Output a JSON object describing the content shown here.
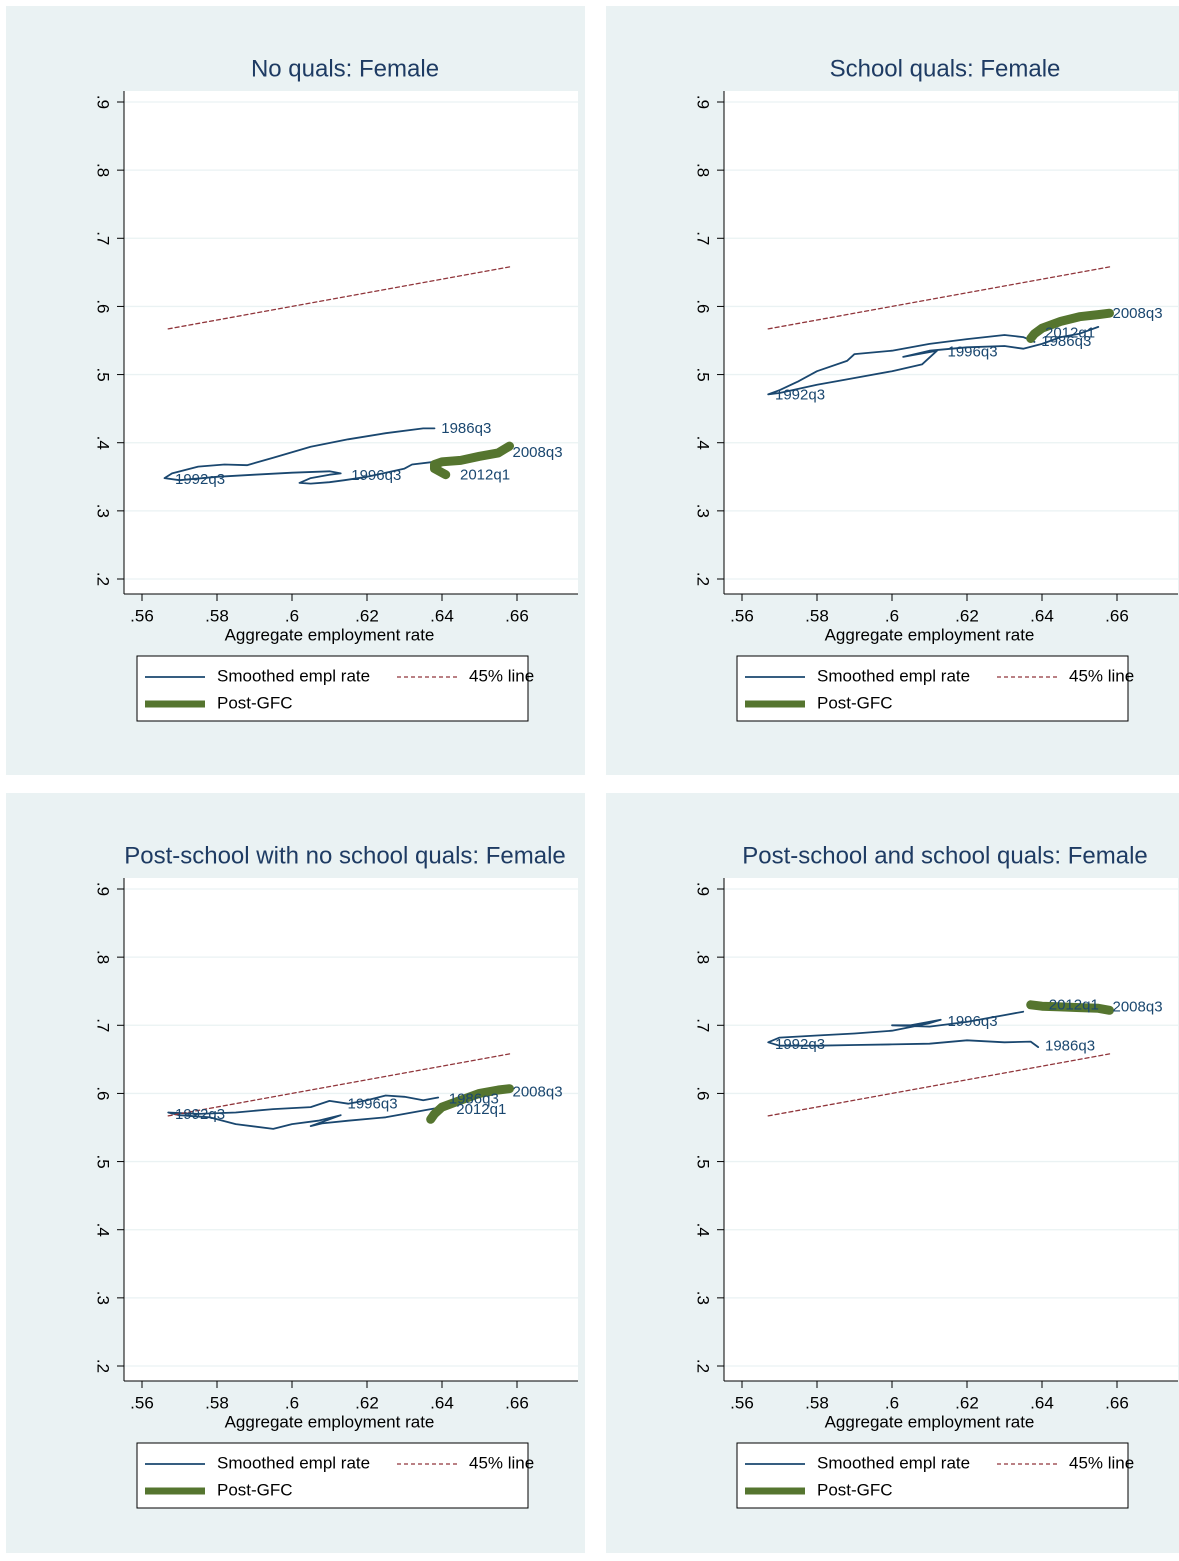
{
  "chart_data": [
    {
      "type": "line",
      "title": "No quals: Female",
      "xlabel": "Aggregate employment rate",
      "xlim": [
        0.56,
        0.66
      ],
      "xticks": [
        {
          "value": 0.56,
          "label": ".56"
        },
        {
          "value": 0.58,
          "label": ".58"
        },
        {
          "value": 0.6,
          "label": ".6"
        },
        {
          "value": 0.62,
          "label": ".62"
        },
        {
          "value": 0.64,
          "label": ".64"
        },
        {
          "value": 0.66,
          "label": ".66"
        }
      ],
      "ylim": [
        0.2,
        0.9
      ],
      "yticks": [
        {
          "value": 0.2,
          "label": ".2"
        },
        {
          "value": 0.3,
          "label": ".3"
        },
        {
          "value": 0.4,
          "label": ".4"
        },
        {
          "value": 0.5,
          "label": ".5"
        },
        {
          "value": 0.6,
          "label": ".6"
        },
        {
          "value": 0.7,
          "label": ".7"
        },
        {
          "value": 0.8,
          "label": ".8"
        },
        {
          "value": 0.9,
          "label": ".9"
        }
      ],
      "grid": true,
      "series": [
        {
          "name": "Smoothed empl rate",
          "color": "#1a476f",
          "style": "solid",
          "x": [
            0.638,
            0.635,
            0.625,
            0.615,
            0.605,
            0.595,
            0.588,
            0.582,
            0.575,
            0.568,
            0.566,
            0.57,
            0.58,
            0.59,
            0.6,
            0.61,
            0.613,
            0.61,
            0.605,
            0.602,
            0.605,
            0.61,
            0.614,
            0.62,
            0.63,
            0.632,
            0.638,
            0.64
          ],
          "values": [
            0.421,
            0.421,
            0.414,
            0.405,
            0.394,
            0.378,
            0.367,
            0.368,
            0.365,
            0.355,
            0.348,
            0.345,
            0.35,
            0.353,
            0.356,
            0.358,
            0.355,
            0.353,
            0.348,
            0.341,
            0.34,
            0.342,
            0.345,
            0.35,
            0.362,
            0.368,
            0.372,
            0.37
          ]
        },
        {
          "name": "45% line",
          "color": "#90353b",
          "style": "dashed",
          "x": [
            0.567,
            0.658
          ],
          "values": [
            0.567,
            0.658
          ]
        },
        {
          "name": "Post-GFC",
          "color": "#55752f",
          "style": "thick",
          "x": [
            0.658,
            0.655,
            0.65,
            0.645,
            0.64,
            0.638,
            0.638,
            0.64,
            0.641
          ],
          "values": [
            0.395,
            0.385,
            0.38,
            0.374,
            0.372,
            0.368,
            0.362,
            0.356,
            0.353
          ]
        }
      ],
      "annotations": [
        {
          "text": "1986q3",
          "x": 0.639,
          "y": 0.42
        },
        {
          "text": "2008q3",
          "x": 0.658,
          "y": 0.385
        },
        {
          "text": "1992q3",
          "x": 0.568,
          "y": 0.345
        },
        {
          "text": "1996q3",
          "x": 0.615,
          "y": 0.351
        },
        {
          "text": "2012q1",
          "x": 0.644,
          "y": 0.352
        }
      ]
    },
    {
      "type": "line",
      "title": "School quals: Female",
      "xlabel": "Aggregate employment rate",
      "xlim": [
        0.56,
        0.66
      ],
      "xticks": [
        {
          "value": 0.56,
          "label": ".56"
        },
        {
          "value": 0.58,
          "label": ".58"
        },
        {
          "value": 0.6,
          "label": ".6"
        },
        {
          "value": 0.62,
          "label": ".62"
        },
        {
          "value": 0.64,
          "label": ".64"
        },
        {
          "value": 0.66,
          "label": ".66"
        }
      ],
      "ylim": [
        0.2,
        0.9
      ],
      "yticks": [
        {
          "value": 0.2,
          "label": ".2"
        },
        {
          "value": 0.3,
          "label": ".3"
        },
        {
          "value": 0.4,
          "label": ".4"
        },
        {
          "value": 0.5,
          "label": ".5"
        },
        {
          "value": 0.6,
          "label": ".6"
        },
        {
          "value": 0.7,
          "label": ".7"
        },
        {
          "value": 0.8,
          "label": ".8"
        },
        {
          "value": 0.9,
          "label": ".9"
        }
      ],
      "grid": true,
      "series": [
        {
          "name": "Smoothed empl rate",
          "color": "#1a476f",
          "style": "solid",
          "x": [
            0.638,
            0.635,
            0.63,
            0.62,
            0.61,
            0.6,
            0.59,
            0.588,
            0.58,
            0.575,
            0.57,
            0.567,
            0.57,
            0.58,
            0.59,
            0.6,
            0.608,
            0.612,
            0.605,
            0.603,
            0.61,
            0.62,
            0.63,
            0.635,
            0.64,
            0.645,
            0.65,
            0.655
          ],
          "values": [
            0.548,
            0.555,
            0.558,
            0.552,
            0.545,
            0.535,
            0.53,
            0.52,
            0.505,
            0.49,
            0.477,
            0.471,
            0.473,
            0.485,
            0.495,
            0.505,
            0.515,
            0.535,
            0.528,
            0.526,
            0.535,
            0.54,
            0.542,
            0.538,
            0.545,
            0.555,
            0.56,
            0.57
          ]
        },
        {
          "name": "45% line",
          "color": "#90353b",
          "style": "dashed",
          "x": [
            0.567,
            0.658
          ],
          "values": [
            0.567,
            0.658
          ]
        },
        {
          "name": "Post-GFC",
          "color": "#55752f",
          "style": "thick",
          "x": [
            0.658,
            0.655,
            0.65,
            0.645,
            0.64,
            0.638,
            0.637
          ],
          "values": [
            0.59,
            0.588,
            0.585,
            0.578,
            0.568,
            0.56,
            0.553
          ]
        }
      ],
      "annotations": [
        {
          "text": "1986q3",
          "x": 0.639,
          "y": 0.548
        },
        {
          "text": "2008q3",
          "x": 0.658,
          "y": 0.589
        },
        {
          "text": "1992q3",
          "x": 0.568,
          "y": 0.469
        },
        {
          "text": "1996q3",
          "x": 0.614,
          "y": 0.532
        },
        {
          "text": "2012q1",
          "x": 0.64,
          "y": 0.56
        }
      ]
    },
    {
      "type": "line",
      "title": "Post-school with no school quals: Female",
      "xlabel": "Aggregate employment rate",
      "xlim": [
        0.56,
        0.66
      ],
      "xticks": [
        {
          "value": 0.56,
          "label": ".56"
        },
        {
          "value": 0.58,
          "label": ".58"
        },
        {
          "value": 0.6,
          "label": ".6"
        },
        {
          "value": 0.62,
          "label": ".62"
        },
        {
          "value": 0.64,
          "label": ".64"
        },
        {
          "value": 0.66,
          "label": ".66"
        }
      ],
      "ylim": [
        0.2,
        0.9
      ],
      "yticks": [
        {
          "value": 0.2,
          "label": ".2"
        },
        {
          "value": 0.3,
          "label": ".3"
        },
        {
          "value": 0.4,
          "label": ".4"
        },
        {
          "value": 0.5,
          "label": ".5"
        },
        {
          "value": 0.6,
          "label": ".6"
        },
        {
          "value": 0.7,
          "label": ".7"
        },
        {
          "value": 0.8,
          "label": ".8"
        },
        {
          "value": 0.9,
          "label": ".9"
        }
      ],
      "grid": true,
      "series": [
        {
          "name": "Smoothed empl rate",
          "color": "#1a476f",
          "style": "solid",
          "x": [
            0.639,
            0.635,
            0.63,
            0.625,
            0.62,
            0.615,
            0.61,
            0.605,
            0.595,
            0.585,
            0.575,
            0.567,
            0.57,
            0.578,
            0.585,
            0.595,
            0.6,
            0.607,
            0.613,
            0.61,
            0.605,
            0.608,
            0.615,
            0.625,
            0.635,
            0.64
          ],
          "values": [
            0.594,
            0.59,
            0.595,
            0.597,
            0.59,
            0.585,
            0.589,
            0.58,
            0.577,
            0.572,
            0.57,
            0.572,
            0.568,
            0.565,
            0.555,
            0.548,
            0.555,
            0.56,
            0.568,
            0.562,
            0.552,
            0.556,
            0.56,
            0.565,
            0.575,
            0.58
          ]
        },
        {
          "name": "45% line",
          "color": "#90353b",
          "style": "dashed",
          "x": [
            0.567,
            0.658
          ],
          "values": [
            0.567,
            0.658
          ]
        },
        {
          "name": "Post-GFC",
          "color": "#55752f",
          "style": "thick",
          "x": [
            0.658,
            0.655,
            0.65,
            0.645,
            0.64,
            0.638,
            0.637
          ],
          "values": [
            0.607,
            0.605,
            0.6,
            0.59,
            0.58,
            0.57,
            0.562
          ]
        }
      ],
      "annotations": [
        {
          "text": "1986q3",
          "x": 0.641,
          "y": 0.591
        },
        {
          "text": "2008q3",
          "x": 0.658,
          "y": 0.601
        },
        {
          "text": "1992q3",
          "x": 0.568,
          "y": 0.568
        },
        {
          "text": "1996q3",
          "x": 0.614,
          "y": 0.584
        },
        {
          "text": "2012q1",
          "x": 0.643,
          "y": 0.576
        }
      ]
    },
    {
      "type": "line",
      "title": "Post-school and school quals: Female",
      "xlabel": "Aggregate employment rate",
      "xlim": [
        0.56,
        0.66
      ],
      "xticks": [
        {
          "value": 0.56,
          "label": ".56"
        },
        {
          "value": 0.58,
          "label": ".58"
        },
        {
          "value": 0.6,
          "label": ".6"
        },
        {
          "value": 0.62,
          "label": ".62"
        },
        {
          "value": 0.64,
          "label": ".64"
        },
        {
          "value": 0.66,
          "label": ".66"
        }
      ],
      "ylim": [
        0.2,
        0.9
      ],
      "yticks": [
        {
          "value": 0.2,
          "label": ".2"
        },
        {
          "value": 0.3,
          "label": ".3"
        },
        {
          "value": 0.4,
          "label": ".4"
        },
        {
          "value": 0.5,
          "label": ".5"
        },
        {
          "value": 0.6,
          "label": ".6"
        },
        {
          "value": 0.7,
          "label": ".7"
        },
        {
          "value": 0.8,
          "label": ".8"
        },
        {
          "value": 0.9,
          "label": ".9"
        }
      ],
      "grid": true,
      "series": [
        {
          "name": "Smoothed empl rate",
          "color": "#1a476f",
          "style": "solid",
          "x": [
            0.639,
            0.637,
            0.63,
            0.62,
            0.61,
            0.6,
            0.59,
            0.58,
            0.57,
            0.567,
            0.57,
            0.58,
            0.59,
            0.6,
            0.61,
            0.613,
            0.605,
            0.6,
            0.61,
            0.62,
            0.63,
            0.635
          ],
          "values": [
            0.668,
            0.676,
            0.675,
            0.678,
            0.673,
            0.672,
            0.671,
            0.67,
            0.67,
            0.675,
            0.682,
            0.685,
            0.688,
            0.692,
            0.703,
            0.708,
            0.7,
            0.7,
            0.698,
            0.705,
            0.715,
            0.72
          ]
        },
        {
          "name": "45% line",
          "color": "#90353b",
          "style": "dashed",
          "x": [
            0.567,
            0.658
          ],
          "values": [
            0.567,
            0.658
          ]
        },
        {
          "name": "Post-GFC",
          "color": "#55752f",
          "style": "thick",
          "x": [
            0.658,
            0.655,
            0.65,
            0.645,
            0.64,
            0.637
          ],
          "values": [
            0.722,
            0.725,
            0.726,
            0.727,
            0.728,
            0.73
          ]
        }
      ],
      "annotations": [
        {
          "text": "1986q3",
          "x": 0.64,
          "y": 0.669
        },
        {
          "text": "2008q3",
          "x": 0.658,
          "y": 0.726
        },
        {
          "text": "1992q3",
          "x": 0.568,
          "y": 0.671
        },
        {
          "text": "1996q3",
          "x": 0.614,
          "y": 0.705
        },
        {
          "text": "2012q1",
          "x": 0.641,
          "y": 0.729
        }
      ]
    }
  ]
}
